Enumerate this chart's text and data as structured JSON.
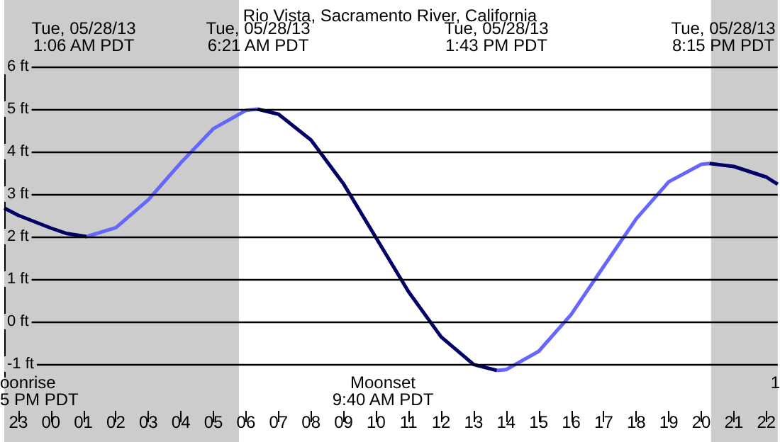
{
  "chart_data": {
    "type": "line",
    "title": "Rio Vista, Sacramento River, California",
    "series": [
      {
        "color": "#000066",
        "x": [
          "--05-27T22:34",
          "--05-27T23:00",
          "--05-28T00:00",
          "--05-28T00:30",
          "--05-28T01:06"
        ],
        "values": [
          2.67,
          2.5,
          2.2,
          2.07,
          2.0
        ]
      },
      {
        "color": "#6666ff",
        "x": [
          "--05-28T01:06",
          "--05-28T02:00",
          "--05-28T03:00",
          "--05-28T04:00",
          "--05-28T05:00",
          "--05-28T06:00",
          "--05-28T06:21"
        ],
        "values": [
          2.0,
          2.21,
          2.87,
          3.74,
          4.54,
          4.97,
          5.0
        ]
      },
      {
        "color": "#000066",
        "x": [
          "--05-28T06:21",
          "--05-28T07:00",
          "--05-28T08:00",
          "--05-28T09:00",
          "--05-28T10:00",
          "--05-28T11:00",
          "--05-28T12:00",
          "--05-28T13:00",
          "--05-28T13:43"
        ],
        "values": [
          5.0,
          4.88,
          4.27,
          3.24,
          1.97,
          0.7,
          -0.36,
          -1.01,
          -1.15
        ]
      },
      {
        "color": "#6666ff",
        "x": [
          "--05-28T13:43",
          "--05-28T14:00",
          "--05-28T15:00",
          "--05-28T16:00",
          "--05-28T17:00",
          "--05-28T18:00",
          "--05-28T19:00",
          "--05-28T20:00",
          "--05-28T20:15"
        ],
        "values": [
          -1.15,
          -1.13,
          -0.7,
          0.17,
          1.3,
          2.42,
          3.29,
          3.7,
          3.72
        ]
      },
      {
        "color": "#000066",
        "x": [
          "--05-28T20:15",
          "--05-28T21:00",
          "--05-28T22:00",
          "--05-28T22:21"
        ],
        "values": [
          3.72,
          3.65,
          3.4,
          3.23
        ]
      }
    ],
    "xlim": [
      "--05-27T22:34",
      "--05-28T22:21"
    ],
    "xticks": [
      {
        "value": "--05-27T23:00",
        "label": "23"
      },
      {
        "value": "--05-28T00:00",
        "label": "00"
      },
      {
        "value": "--05-28T01:00",
        "label": "01"
      },
      {
        "value": "--05-28T02:00",
        "label": "02"
      },
      {
        "value": "--05-28T03:00",
        "label": "03"
      },
      {
        "value": "--05-28T04:00",
        "label": "04"
      },
      {
        "value": "--05-28T05:00",
        "label": "05"
      },
      {
        "value": "--05-28T06:00",
        "label": "06"
      },
      {
        "value": "--05-28T07:00",
        "label": "07"
      },
      {
        "value": "--05-28T08:00",
        "label": "08"
      },
      {
        "value": "--05-28T09:00",
        "label": "09"
      },
      {
        "value": "--05-28T10:00",
        "label": "10"
      },
      {
        "value": "--05-28T11:00",
        "label": "11"
      },
      {
        "value": "--05-28T12:00",
        "label": "12"
      },
      {
        "value": "--05-28T13:00",
        "label": "13"
      },
      {
        "value": "--05-28T14:00",
        "label": "14"
      },
      {
        "value": "--05-28T15:00",
        "label": "15"
      },
      {
        "value": "--05-28T16:00",
        "label": "16"
      },
      {
        "value": "--05-28T17:00",
        "label": "17"
      },
      {
        "value": "--05-28T18:00",
        "label": "18"
      },
      {
        "value": "--05-28T19:00",
        "label": "19"
      },
      {
        "value": "--05-28T20:00",
        "label": "20"
      },
      {
        "value": "--05-28T21:00",
        "label": "21"
      },
      {
        "value": "--05-28T22:00",
        "label": "22"
      }
    ],
    "ylim": [
      -1.3,
      6
    ],
    "yticks": [
      {
        "value": -1,
        "label": "-1 ft"
      },
      {
        "value": 0,
        "label": "0 ft"
      },
      {
        "value": 1,
        "label": "1 ft"
      },
      {
        "value": 2,
        "label": "2 ft"
      },
      {
        "value": 3,
        "label": "3 ft"
      },
      {
        "value": 4,
        "label": "4 ft"
      },
      {
        "value": 5,
        "label": "5 ft"
      },
      {
        "value": 6,
        "label": "6 ft"
      }
    ],
    "grid": "y",
    "bands": [
      {
        "axis": "x",
        "from": "--05-27T22:34",
        "to": "--05-28T05:47",
        "color": "#cccccc"
      },
      {
        "axis": "x",
        "from": "--05-28T20:18",
        "to": "--05-28T22:21",
        "color": "#cccccc"
      }
    ],
    "annotations": [
      "Tue, 05/28/13\n1:06 AM PDT",
      "Tue, 05/28/13\n6:21 AM PDT",
      "Tue, 05/28/13\n1:43 PM PDT",
      "Tue, 05/28/13\n8:15 PM PDT",
      "oonrise\n5 PM PDT",
      "Moonset\n9:40 AM PDT",
      "1"
    ]
  }
}
